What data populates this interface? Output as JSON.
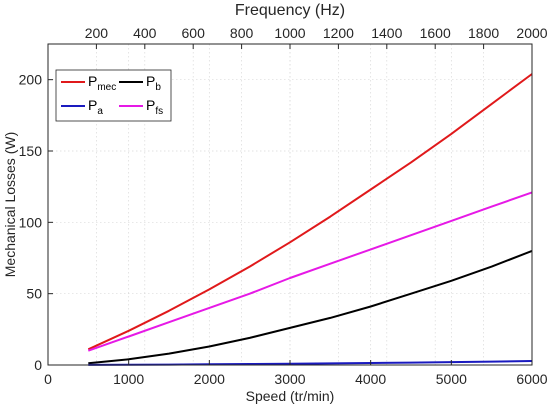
{
  "chart_data": {
    "type": "line",
    "xlabel": "Speed (tr/min)",
    "ylabel": "Mechanical Losses (W)",
    "top_xlabel": "Frequency (Hz)",
    "xlim": [
      0,
      6000
    ],
    "ylim": [
      0,
      225
    ],
    "top_xlim": [
      0,
      2000
    ],
    "x_ticks": [
      0,
      1000,
      2000,
      3000,
      4000,
      5000,
      6000
    ],
    "y_ticks": [
      0,
      50,
      100,
      150,
      200
    ],
    "top_x_ticks": [
      200,
      400,
      600,
      800,
      1000,
      1200,
      1400,
      1600,
      1800,
      2000
    ],
    "grid": true,
    "legend_position": "top-left",
    "x": [
      500,
      1000,
      1500,
      2000,
      2500,
      3000,
      3500,
      4000,
      4500,
      5000,
      5500,
      6000
    ],
    "series": [
      {
        "name_main": "P",
        "name_sub": "mec",
        "color": "#e0191b",
        "values": [
          11,
          24,
          38,
          53,
          69,
          86,
          104,
          123,
          142,
          162,
          183,
          204
        ]
      },
      {
        "name_main": "P",
        "name_sub": "b",
        "color": "#000000",
        "values": [
          1.2,
          4,
          8,
          13,
          19,
          26,
          33,
          41,
          50,
          59,
          69,
          80
        ]
      },
      {
        "name_main": "P",
        "name_sub": "a",
        "color": "#1a1abf",
        "values": [
          0.1,
          0.2,
          0.3,
          0.5,
          0.7,
          0.9,
          1.1,
          1.4,
          1.7,
          2.0,
          2.4,
          2.8
        ]
      },
      {
        "name_main": "P",
        "name_sub": "fs",
        "color": "#e619e6",
        "values": [
          10,
          20,
          30,
          40,
          50,
          61,
          71,
          81,
          91,
          101,
          111,
          121
        ]
      }
    ]
  }
}
